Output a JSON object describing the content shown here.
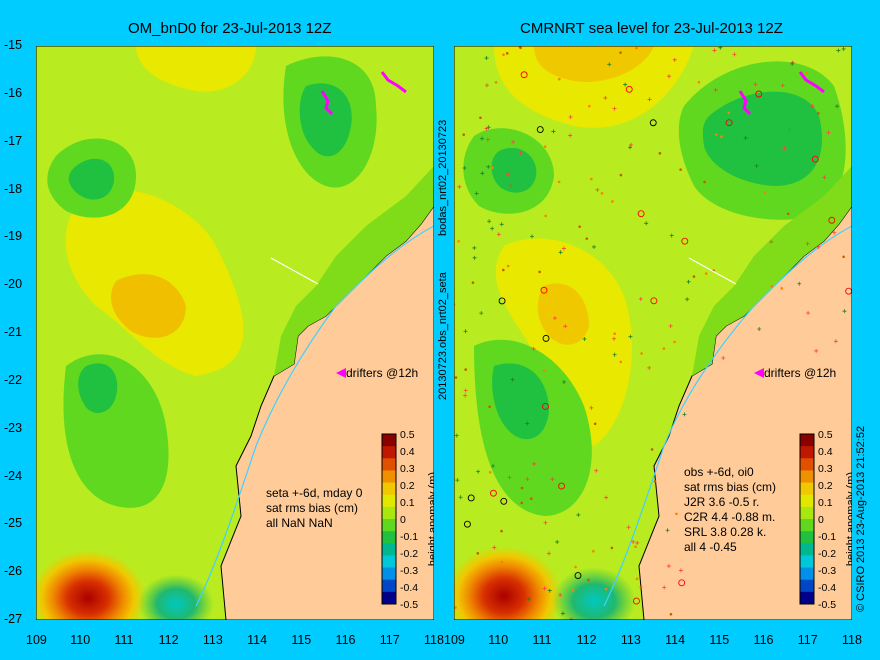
{
  "panels": [
    {
      "title": "OM_bnD0 for 23-Jul-2013 12Z",
      "stats": [
        "seta +-6d, mday 0",
        "sat rms bias (cm)",
        "all NaN NaN"
      ],
      "drifters": "drifters @12h"
    },
    {
      "title": "CMRNRT sea level  for 23-Jul-2013 12Z",
      "stats": [
        "obs +-6d, oi0",
        "sat rms bias (cm)",
        "J2R   3.6  -0.5 r.",
        "C2R   4.4  -0.88 m.",
        "SRL   3.8  0.28 k.",
        "all   4  -0.45"
      ],
      "drifters": "drifters @12h"
    }
  ],
  "axes": {
    "lat_ticks": [
      "-15",
      "-16",
      "-17",
      "-18",
      "-19",
      "-20",
      "-21",
      "-22",
      "-23",
      "-24",
      "-25",
      "-26",
      "-27"
    ],
    "lon_ticks": [
      "109",
      "110",
      "111",
      "112",
      "113",
      "114",
      "115",
      "116",
      "117",
      "118"
    ]
  },
  "colorbar": {
    "ticks": [
      "0.5",
      "0.4",
      "0.3",
      "0.2",
      "0.1",
      "0",
      "-0.1",
      "-0.2",
      "-0.3",
      "-0.4",
      "-0.5"
    ],
    "label": "height anomaly (m)",
    "colors": [
      "#00008b",
      "#0047c8",
      "#0090e8",
      "#00c8d8",
      "#00b890",
      "#20c040",
      "#60d820",
      "#a8e810",
      "#e0e800",
      "#f0c800",
      "#f09000",
      "#e05000",
      "#c01800",
      "#880000"
    ]
  },
  "side_label_left": "20130723.obs_nrt02_seta",
  "side_label_right": "bodas_nrt02_20130723",
  "copyright": "© CSIRO 2013   23-Aug-2013 21:52:52"
}
